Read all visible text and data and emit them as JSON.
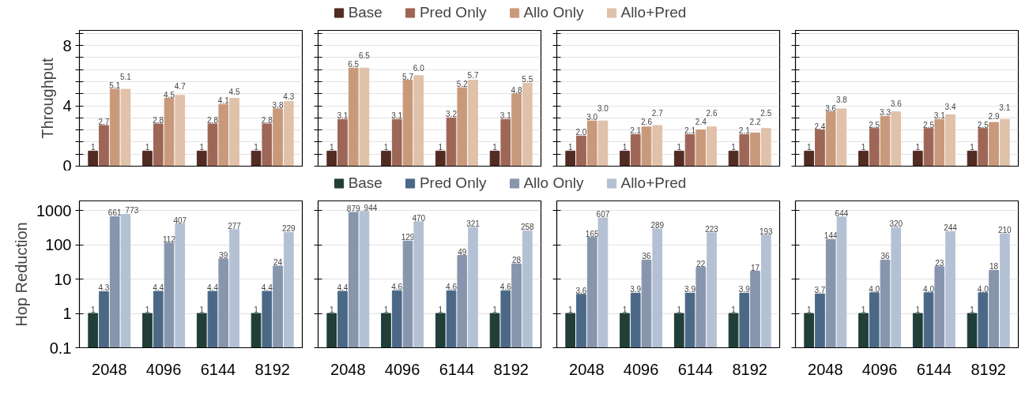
{
  "chart_data": [
    {
      "type": "bar",
      "ylabel": "Throughput",
      "categories": [
        "2048",
        "4096",
        "6144",
        "8192"
      ],
      "ylim": [
        0,
        9
      ],
      "yticks": [
        0,
        {
          "value": 0.8,
          "label": null
        },
        {
          "value": 1.6,
          "label": null
        },
        {
          "value": 2.4,
          "label": null
        },
        {
          "value": 3.2,
          "label": null
        },
        4,
        {
          "value": 4.8,
          "label": null
        },
        {
          "value": 5.6,
          "label": null
        },
        {
          "value": 6.4,
          "label": null
        },
        {
          "value": 7.2,
          "label": null
        },
        8,
        {
          "value": 8.8,
          "label": null
        }
      ],
      "grid": "y",
      "legend": "top",
      "tick_labels": "y",
      "series": [
        {
          "name": "Base",
          "color": "#522b22",
          "values": [
            1,
            1,
            1,
            1
          ],
          "value_labels": [
            "1",
            "1",
            "1",
            "1"
          ]
        },
        {
          "name": "Pred Only",
          "color": "#9e6656",
          "values": [
            2.7,
            2.8,
            2.8,
            2.8
          ],
          "value_labels": [
            "2.7",
            "2.8",
            "2.8",
            "2.8"
          ]
        },
        {
          "name": "Allo Only",
          "color": "#c9997b",
          "values": [
            5.1,
            4.5,
            4.1,
            3.8
          ],
          "value_labels": [
            "5.1",
            "4.5",
            "4.1",
            "3.8"
          ]
        },
        {
          "name": "Allo+Pred",
          "color": "#e0c1aa",
          "values": [
            5.1,
            4.7,
            4.5,
            4.3
          ],
          "value_labels": [
            "5.1",
            "4.7",
            "4.5",
            "4.3"
          ]
        }
      ]
    },
    {
      "type": "bar",
      "categories": [
        "2048",
        "4096",
        "6144",
        "8192"
      ],
      "ylim": [
        0,
        9
      ],
      "yticks": [
        0,
        {
          "value": 0.8,
          "label": null
        },
        {
          "value": 1.6,
          "label": null
        },
        {
          "value": 2.4,
          "label": null
        },
        {
          "value": 3.2,
          "label": null
        },
        4,
        {
          "value": 4.8,
          "label": null
        },
        {
          "value": 5.6,
          "label": null
        },
        {
          "value": 6.4,
          "label": null
        },
        {
          "value": 7.2,
          "label": null
        },
        8,
        {
          "value": 8.8,
          "label": null
        }
      ],
      "grid": "y",
      "tick_labels": false,
      "series": [
        {
          "color": "#522b22",
          "values": [
            1,
            1,
            1,
            1
          ],
          "value_labels": [
            "1",
            "1",
            "1",
            "1"
          ]
        },
        {
          "color": "#9e6656",
          "values": [
            3.1,
            3.1,
            3.2,
            3.1
          ],
          "value_labels": [
            "3.1",
            "3.1",
            "3.2",
            "3.1"
          ]
        },
        {
          "color": "#c9997b",
          "values": [
            6.5,
            5.7,
            5.2,
            4.8
          ],
          "value_labels": [
            "6.5",
            "5.7",
            "5.2",
            "4.8"
          ]
        },
        {
          "color": "#e0c1aa",
          "values": [
            6.5,
            6.0,
            5.7,
            5.5
          ],
          "value_labels": [
            "6.5",
            "6.0",
            "5.7",
            "5.5"
          ]
        }
      ]
    },
    {
      "type": "bar",
      "categories": [
        "2048",
        "4096",
        "6144",
        "8192"
      ],
      "ylim": [
        0,
        9
      ],
      "yticks": [
        0,
        {
          "value": 0.8,
          "label": null
        },
        {
          "value": 1.6,
          "label": null
        },
        {
          "value": 2.4,
          "label": null
        },
        {
          "value": 3.2,
          "label": null
        },
        4,
        {
          "value": 4.8,
          "label": null
        },
        {
          "value": 5.6,
          "label": null
        },
        {
          "value": 6.4,
          "label": null
        },
        {
          "value": 7.2,
          "label": null
        },
        8,
        {
          "value": 8.8,
          "label": null
        }
      ],
      "grid": "y",
      "tick_labels": false,
      "series": [
        {
          "color": "#522b22",
          "values": [
            1,
            1,
            1,
            1
          ],
          "value_labels": [
            "1",
            "1",
            "1",
            "1"
          ]
        },
        {
          "color": "#9e6656",
          "values": [
            2.0,
            2.1,
            2.1,
            2.1
          ],
          "value_labels": [
            "2.0",
            "2.1",
            "2.1",
            "2.1"
          ]
        },
        {
          "color": "#c9997b",
          "values": [
            3.0,
            2.6,
            2.4,
            2.2
          ],
          "value_labels": [
            "3.0",
            "2.6",
            "2.4",
            "2.2"
          ]
        },
        {
          "color": "#e0c1aa",
          "values": [
            3.0,
            2.7,
            2.6,
            2.5
          ],
          "value_labels": [
            "3.0",
            "2.7",
            "2.6",
            "2.5"
          ]
        }
      ]
    },
    {
      "type": "bar",
      "categories": [
        "2048",
        "4096",
        "6144",
        "8192"
      ],
      "ylim": [
        0,
        9
      ],
      "yticks": [
        0,
        {
          "value": 0.8,
          "label": null
        },
        {
          "value": 1.6,
          "label": null
        },
        {
          "value": 2.4,
          "label": null
        },
        {
          "value": 3.2,
          "label": null
        },
        4,
        {
          "value": 4.8,
          "label": null
        },
        {
          "value": 5.6,
          "label": null
        },
        {
          "value": 6.4,
          "label": null
        },
        {
          "value": 7.2,
          "label": null
        },
        8,
        {
          "value": 8.8,
          "label": null
        }
      ],
      "grid": "y",
      "tick_labels": false,
      "series": [
        {
          "color": "#522b22",
          "values": [
            1,
            1,
            1,
            1
          ],
          "value_labels": [
            "1",
            "1",
            "1",
            "1"
          ]
        },
        {
          "color": "#9e6656",
          "values": [
            2.4,
            2.5,
            2.5,
            2.5
          ],
          "value_labels": [
            "2.4",
            "2.5",
            "2.5",
            "2.5"
          ]
        },
        {
          "color": "#c9997b",
          "values": [
            3.6,
            3.3,
            3.1,
            2.9
          ],
          "value_labels": [
            "3.6",
            "3.3",
            "3.1",
            "2.9"
          ]
        },
        {
          "color": "#e0c1aa",
          "values": [
            3.8,
            3.6,
            3.4,
            3.1
          ],
          "value_labels": [
            "3.8",
            "3.6",
            "3.4",
            "3.1"
          ]
        }
      ]
    },
    {
      "type": "bar",
      "ylabel": "Hop Reduction",
      "categories": [
        "2048",
        "4096",
        "6144",
        "8192"
      ],
      "log": true,
      "ylim": [
        0.1,
        1900
      ],
      "yticks": [
        0.1,
        1,
        10,
        100,
        1000
      ],
      "grid": "y",
      "legend": "top",
      "series": [
        {
          "name": "Base",
          "color": "#213e38",
          "values": [
            1,
            1,
            1,
            1
          ],
          "value_labels": [
            "1",
            "1",
            "1",
            "1"
          ]
        },
        {
          "name": "Pred Only",
          "color": "#4b6987",
          "values": [
            4.3,
            4.4,
            4.4,
            4.4
          ],
          "value_labels": [
            "4.3",
            "4.4",
            "4.4",
            "4.4"
          ]
        },
        {
          "name": "Allo Only",
          "color": "#8795ad",
          "values": [
            661,
            112,
            39,
            24
          ],
          "value_labels": [
            "661",
            "112",
            "39",
            "24"
          ]
        },
        {
          "name": "Allo+Pred",
          "color": "#b4c0d3",
          "values": [
            773,
            407,
            277,
            229
          ],
          "value_labels": [
            "773",
            "407",
            "277",
            "229"
          ]
        }
      ]
    },
    {
      "type": "bar",
      "categories": [
        "2048",
        "4096",
        "6144",
        "8192"
      ],
      "log": true,
      "ylim": [
        0.1,
        1900
      ],
      "yticks": [
        0.1,
        1,
        10,
        100,
        1000
      ],
      "grid": "y",
      "tick_labels": "x",
      "series": [
        {
          "color": "#213e38",
          "values": [
            1,
            1,
            1,
            1
          ],
          "value_labels": [
            "1",
            "1",
            "1",
            "1"
          ]
        },
        {
          "color": "#4b6987",
          "values": [
            4.4,
            4.6,
            4.6,
            4.6
          ],
          "value_labels": [
            "4.4",
            "4.6",
            "4.6",
            "4.6"
          ]
        },
        {
          "color": "#8795ad",
          "values": [
            879,
            129,
            49,
            28
          ],
          "value_labels": [
            "879",
            "129",
            "49",
            "28"
          ]
        },
        {
          "color": "#b4c0d3",
          "values": [
            944,
            470,
            321,
            258
          ],
          "value_labels": [
            "944",
            "470",
            "321",
            "258"
          ]
        }
      ]
    },
    {
      "type": "bar",
      "categories": [
        "2048",
        "4096",
        "6144",
        "8192"
      ],
      "log": true,
      "ylim": [
        0.1,
        1900
      ],
      "yticks": [
        0.1,
        1,
        10,
        100,
        1000
      ],
      "grid": "y",
      "tick_labels": "x",
      "series": [
        {
          "color": "#213e38",
          "values": [
            1,
            1,
            1,
            1
          ],
          "value_labels": [
            "1",
            "1",
            "1",
            "1"
          ]
        },
        {
          "color": "#4b6987",
          "values": [
            3.6,
            3.9,
            3.9,
            3.9
          ],
          "value_labels": [
            "3.6",
            "3.9",
            "3.9",
            "3.9"
          ]
        },
        {
          "color": "#8795ad",
          "values": [
            165,
            36,
            22,
            17
          ],
          "value_labels": [
            "165",
            "36",
            "22",
            "17"
          ]
        },
        {
          "color": "#b4c0d3",
          "values": [
            607,
            289,
            223,
            193
          ],
          "value_labels": [
            "607",
            "289",
            "223",
            "193"
          ]
        }
      ]
    },
    {
      "type": "bar",
      "categories": [
        "2048",
        "4096",
        "6144",
        "8192"
      ],
      "log": true,
      "ylim": [
        0.1,
        1900
      ],
      "yticks": [
        0.1,
        1,
        10,
        100,
        1000
      ],
      "grid": "y",
      "tick_labels": "x",
      "series": [
        {
          "color": "#213e38",
          "values": [
            1,
            1,
            1,
            1
          ],
          "value_labels": [
            "1",
            "1",
            "1",
            "1"
          ]
        },
        {
          "color": "#4b6987",
          "values": [
            3.7,
            4.0,
            4.0,
            4.0
          ],
          "value_labels": [
            "3.7",
            "4.0",
            "4.0",
            "4.0"
          ]
        },
        {
          "color": "#8795ad",
          "values": [
            144,
            36,
            23,
            18
          ],
          "value_labels": [
            "144",
            "36",
            "23",
            "18"
          ]
        },
        {
          "color": "#b4c0d3",
          "values": [
            644,
            320,
            244,
            210
          ],
          "value_labels": [
            "644",
            "320",
            "244",
            "210"
          ]
        }
      ]
    }
  ]
}
